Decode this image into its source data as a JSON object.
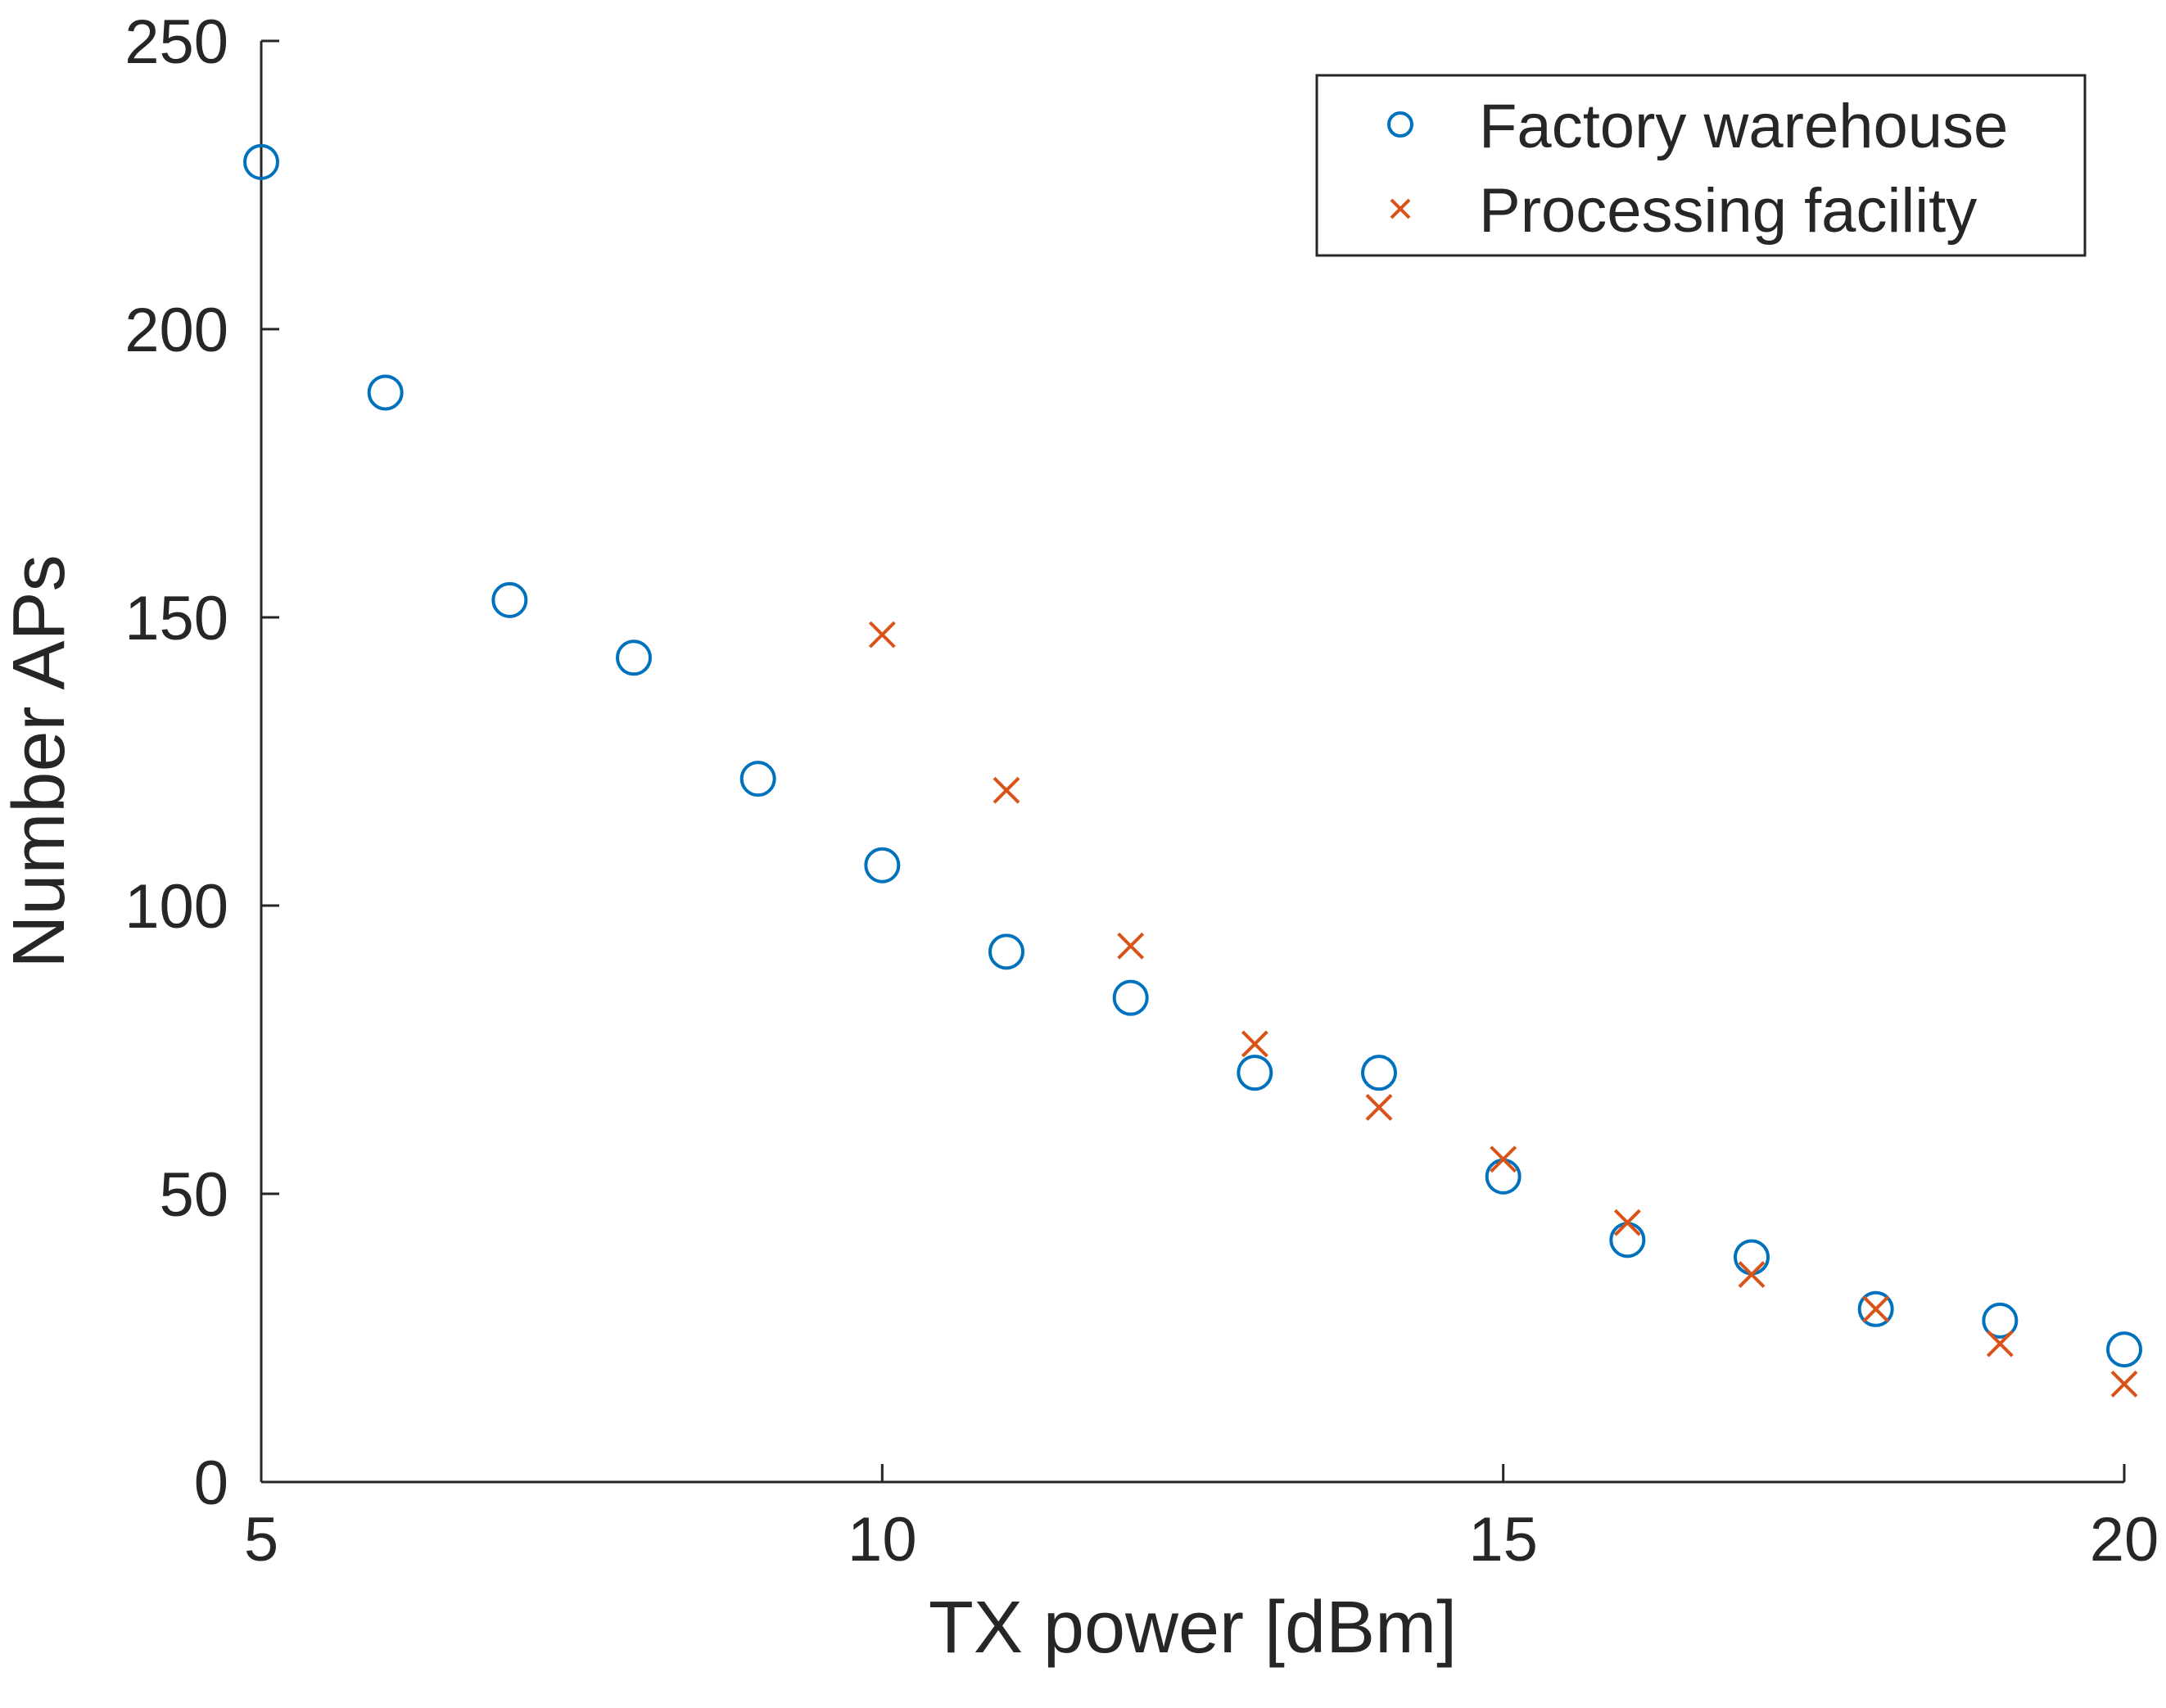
{
  "chart_data": {
    "type": "scatter",
    "title": "",
    "xlabel": "TX power [dBm]",
    "ylabel": "Number APs",
    "xlim": [
      5,
      20
    ],
    "ylim": [
      0,
      250
    ],
    "xticks": [
      5,
      10,
      15,
      20
    ],
    "yticks": [
      0,
      50,
      100,
      150,
      200,
      250
    ],
    "grid": false,
    "legend_position": "top-right",
    "series": [
      {
        "name": "Factory warehouse",
        "marker": "circle",
        "color": "#0072BD",
        "x": [
          5,
          6,
          7,
          8,
          9,
          10,
          11,
          12,
          13,
          14,
          15,
          16,
          17,
          18,
          19,
          20
        ],
        "y": [
          229,
          189,
          153,
          143,
          122,
          107,
          92,
          84,
          71,
          71,
          53,
          42,
          39,
          30,
          28,
          23
        ]
      },
      {
        "name": "Processing facility",
        "marker": "x",
        "color": "#D95319",
        "x": [
          10,
          11,
          12,
          13,
          14,
          15,
          16,
          17,
          18,
          19,
          20
        ],
        "y": [
          147,
          120,
          93,
          76,
          65,
          56,
          45,
          36,
          30,
          24,
          17
        ]
      }
    ]
  }
}
